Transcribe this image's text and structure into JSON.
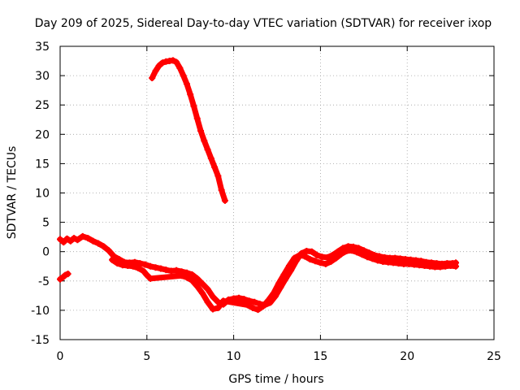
{
  "chart_data": {
    "type": "scatter",
    "title": "Day 209 of 2025, Sidereal Day-to-day VTEC variation (SDTVAR) for receiver ixop",
    "xlabel": "GPS time / hours",
    "ylabel": "SDTVAR / TECUs",
    "xlim": [
      0,
      25
    ],
    "ylim": [
      -15,
      35
    ],
    "xticks": [
      0,
      5,
      10,
      15,
      20,
      25
    ],
    "yticks": [
      -15,
      -10,
      -5,
      0,
      5,
      10,
      15,
      20,
      25,
      30,
      35
    ],
    "grid": true,
    "legend": "none",
    "series_color": "#ff0000",
    "series": [
      {
        "name": "main",
        "points": [
          [
            0.0,
            2.1
          ],
          [
            0.2,
            1.6
          ],
          [
            0.4,
            2.2
          ],
          [
            0.6,
            1.8
          ],
          [
            0.8,
            2.3
          ],
          [
            1.0,
            2.0
          ],
          [
            1.3,
            2.6
          ],
          [
            1.6,
            2.3
          ],
          [
            1.9,
            1.8
          ],
          [
            2.2,
            1.4
          ],
          [
            2.5,
            0.9
          ],
          [
            2.8,
            0.2
          ],
          [
            3.1,
            -0.8
          ],
          [
            3.4,
            -1.3
          ],
          [
            3.7,
            -1.8
          ],
          [
            4.0,
            -1.9
          ],
          [
            4.3,
            -1.8
          ],
          [
            4.6,
            -2.0
          ],
          [
            4.9,
            -2.2
          ],
          [
            5.2,
            -2.5
          ],
          [
            5.5,
            -2.7
          ],
          [
            5.8,
            -2.9
          ],
          [
            6.1,
            -3.1
          ],
          [
            6.4,
            -3.3
          ],
          [
            6.7,
            -3.2
          ],
          [
            7.0,
            -3.4
          ],
          [
            7.3,
            -3.6
          ],
          [
            7.6,
            -3.9
          ],
          [
            7.9,
            -4.6
          ],
          [
            8.2,
            -5.5
          ],
          [
            8.5,
            -6.4
          ],
          [
            8.8,
            -7.7
          ],
          [
            9.1,
            -8.6
          ],
          [
            9.4,
            -9.0
          ],
          [
            9.7,
            -8.2
          ],
          [
            10.0,
            -8.0
          ],
          [
            10.3,
            -7.9
          ],
          [
            10.6,
            -8.1
          ],
          [
            10.9,
            -8.4
          ],
          [
            11.2,
            -8.6
          ],
          [
            11.5,
            -8.9
          ],
          [
            11.8,
            -9.1
          ],
          [
            12.1,
            -8.7
          ],
          [
            12.4,
            -7.6
          ],
          [
            12.7,
            -6.1
          ],
          [
            13.0,
            -4.6
          ],
          [
            13.3,
            -3.2
          ],
          [
            13.6,
            -1.6
          ],
          [
            13.9,
            -0.3
          ],
          [
            14.2,
            0.1
          ],
          [
            14.5,
            0.0
          ],
          [
            14.8,
            -0.6
          ],
          [
            15.1,
            -0.9
          ],
          [
            15.4,
            -1.0
          ],
          [
            15.7,
            -0.6
          ],
          [
            16.0,
            0.0
          ],
          [
            16.3,
            0.6
          ],
          [
            16.6,
            0.9
          ],
          [
            16.9,
            0.8
          ],
          [
            17.2,
            0.6
          ],
          [
            17.5,
            0.2
          ],
          [
            17.8,
            -0.2
          ],
          [
            18.1,
            -0.6
          ],
          [
            18.4,
            -0.8
          ],
          [
            18.7,
            -1.0
          ],
          [
            19.0,
            -1.1
          ],
          [
            19.3,
            -1.1
          ],
          [
            19.6,
            -1.2
          ],
          [
            19.9,
            -1.3
          ],
          [
            20.2,
            -1.4
          ],
          [
            20.5,
            -1.5
          ],
          [
            20.8,
            -1.6
          ],
          [
            21.1,
            -1.8
          ],
          [
            21.4,
            -1.9
          ],
          [
            21.7,
            -2.0
          ],
          [
            22.0,
            -2.1
          ],
          [
            22.3,
            -2.0
          ],
          [
            22.6,
            -2.0
          ],
          [
            22.8,
            -1.9
          ]
        ]
      },
      {
        "name": "lower-branch",
        "points": [
          [
            3.0,
            -1.4
          ],
          [
            3.3,
            -2.0
          ],
          [
            3.6,
            -2.3
          ],
          [
            3.9,
            -2.4
          ],
          [
            4.2,
            -2.5
          ],
          [
            4.5,
            -2.8
          ],
          [
            4.8,
            -3.3
          ],
          [
            5.0,
            -4.0
          ],
          [
            5.2,
            -4.6
          ],
          [
            7.0,
            -4.1
          ],
          [
            7.3,
            -4.4
          ],
          [
            7.6,
            -4.9
          ],
          [
            7.9,
            -5.9
          ],
          [
            8.2,
            -7.1
          ],
          [
            8.5,
            -8.6
          ],
          [
            8.8,
            -9.8
          ],
          [
            9.1,
            -9.6
          ],
          [
            9.4,
            -8.4
          ],
          [
            10.8,
            -9.1
          ],
          [
            11.1,
            -9.6
          ],
          [
            11.4,
            -9.9
          ],
          [
            11.7,
            -9.3
          ],
          [
            12.0,
            -8.3
          ],
          [
            12.3,
            -7.1
          ],
          [
            12.6,
            -5.4
          ],
          [
            12.9,
            -3.9
          ],
          [
            13.2,
            -2.4
          ],
          [
            13.5,
            -1.1
          ],
          [
            13.8,
            -0.6
          ],
          [
            14.1,
            -0.8
          ],
          [
            14.4,
            -1.3
          ],
          [
            14.7,
            -1.6
          ],
          [
            15.0,
            -1.9
          ],
          [
            15.3,
            -2.1
          ],
          [
            15.6,
            -1.7
          ],
          [
            15.9,
            -1.1
          ],
          [
            16.2,
            -0.4
          ],
          [
            16.5,
            0.1
          ],
          [
            16.8,
            0.2
          ],
          [
            17.1,
            -0.1
          ],
          [
            17.4,
            -0.5
          ],
          [
            17.7,
            -0.9
          ],
          [
            18.0,
            -1.2
          ],
          [
            18.3,
            -1.5
          ],
          [
            18.6,
            -1.7
          ],
          [
            18.9,
            -1.8
          ],
          [
            19.2,
            -1.9
          ],
          [
            19.5,
            -2.0
          ],
          [
            19.8,
            -2.1
          ],
          [
            20.1,
            -2.1
          ],
          [
            20.4,
            -2.2
          ],
          [
            20.7,
            -2.3
          ],
          [
            21.0,
            -2.4
          ],
          [
            21.3,
            -2.5
          ],
          [
            21.6,
            -2.6
          ],
          [
            21.9,
            -2.6
          ],
          [
            22.2,
            -2.5
          ],
          [
            22.5,
            -2.4
          ],
          [
            22.8,
            -2.5
          ]
        ]
      },
      {
        "name": "early-segment",
        "points": [
          [
            0.0,
            -4.7
          ],
          [
            0.15,
            -4.4
          ],
          [
            0.3,
            -4.0
          ],
          [
            0.45,
            -3.8
          ]
        ]
      },
      {
        "name": "high-arc",
        "points": [
          [
            5.3,
            29.6
          ],
          [
            5.5,
            30.8
          ],
          [
            5.7,
            31.7
          ],
          [
            5.9,
            32.2
          ],
          [
            6.1,
            32.4
          ],
          [
            6.3,
            32.5
          ],
          [
            6.5,
            32.6
          ],
          [
            6.7,
            32.3
          ],
          [
            6.9,
            31.3
          ],
          [
            7.1,
            30.0
          ],
          [
            7.3,
            28.6
          ],
          [
            7.5,
            26.8
          ],
          [
            7.7,
            24.8
          ],
          [
            7.9,
            22.7
          ],
          [
            8.1,
            20.6
          ],
          [
            8.3,
            18.9
          ],
          [
            8.5,
            17.4
          ],
          [
            8.7,
            15.9
          ],
          [
            8.9,
            14.4
          ],
          [
            9.1,
            12.9
          ],
          [
            9.3,
            10.5
          ],
          [
            9.5,
            8.7
          ]
        ]
      }
    ]
  }
}
